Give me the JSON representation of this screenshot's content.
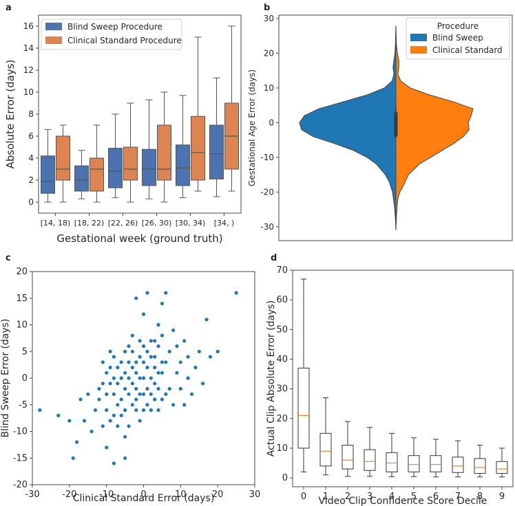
{
  "figure": {
    "panel_letters": [
      "a",
      "b",
      "c",
      "d"
    ],
    "colors": {
      "blind": "#4c72b0",
      "clinical": "#dd8452",
      "violin_blind": "#1f77b4",
      "violin_clinical": "#ff7f0e",
      "scatter": "#1f77b4",
      "median_d": "#ff7f0e",
      "axis": "#444444",
      "whisker": "#555555"
    }
  },
  "chart_data": [
    {
      "panel": "a",
      "type": "box",
      "title": "",
      "xlabel": "Gestational week (ground truth)",
      "ylabel": "Absolute Error (days)",
      "ylim": [
        -1,
        17
      ],
      "yticks": [
        0,
        2,
        4,
        6,
        8,
        10,
        12,
        14,
        16
      ],
      "categories": [
        "[14, 18)",
        "[18, 22)",
        "[22, 26)",
        "[26, 30)",
        "[30, 34)",
        "[34, )"
      ],
      "legend": {
        "position": "upper-left",
        "entries": [
          "Blind Sweep Procedure",
          "Clinical Standard Procedure"
        ]
      },
      "series": [
        {
          "name": "Blind Sweep Procedure",
          "boxes": [
            {
              "whislo": 0,
              "q1": 0.8,
              "med": 1.9,
              "q3": 4.2,
              "whishi": 6.6
            },
            {
              "whislo": 0.3,
              "q1": 1.0,
              "med": 2.0,
              "q3": 3.3,
              "whishi": 4.7
            },
            {
              "whislo": 0.4,
              "q1": 1.3,
              "med": 2.8,
              "q3": 4.9,
              "whishi": 8.0
            },
            {
              "whislo": 0.3,
              "q1": 1.5,
              "med": 3.0,
              "q3": 4.8,
              "whishi": 9.3
            },
            {
              "whislo": 0.4,
              "q1": 1.5,
              "med": 3.1,
              "q3": 5.2,
              "whishi": 9.7
            },
            {
              "whislo": 0.5,
              "q1": 2.1,
              "med": 4.4,
              "q3": 7.0,
              "whishi": 11.3
            }
          ]
        },
        {
          "name": "Clinical Standard Procedure",
          "boxes": [
            {
              "whislo": 0,
              "q1": 2.0,
              "med": 3.0,
              "q3": 6.0,
              "whishi": 7.0
            },
            {
              "whislo": 0,
              "q1": 1.0,
              "med": 3.0,
              "q3": 4.0,
              "whishi": 7.0
            },
            {
              "whislo": 0,
              "q1": 2.0,
              "med": 3.0,
              "q3": 5.0,
              "whishi": 9.0
            },
            {
              "whislo": 0,
              "q1": 2.0,
              "med": 3.0,
              "q3": 7.0,
              "whishi": 10.0
            },
            {
              "whislo": 1.0,
              "q1": 2.0,
              "med": 4.5,
              "q3": 7.8,
              "whishi": 15.0
            },
            {
              "whislo": 1.0,
              "q1": 3.0,
              "med": 6.0,
              "q3": 9.0,
              "whishi": 16.0
            }
          ]
        }
      ]
    },
    {
      "panel": "b",
      "type": "violin",
      "title": "",
      "xlabel": "",
      "ylabel": "Gestational Age Error (days)",
      "ylim": [
        -34,
        31
      ],
      "yticks": [
        -30,
        -20,
        -10,
        0,
        10,
        20,
        30
      ],
      "legend": {
        "position": "top-right",
        "title": "Procedure",
        "entries": [
          "Blind Sweep",
          "Clinical Standard"
        ]
      },
      "series": [
        {
          "name": "Blind Sweep",
          "side": "left",
          "profile": [
            [
              -31,
              0.0
            ],
            [
              -28,
              0.004
            ],
            [
              -25,
              0.012
            ],
            [
              -22,
              0.025
            ],
            [
              -20,
              0.035
            ],
            [
              -17,
              0.07
            ],
            [
              -15,
              0.11
            ],
            [
              -12,
              0.2
            ],
            [
              -10,
              0.3
            ],
            [
              -8,
              0.44
            ],
            [
              -6,
              0.64
            ],
            [
              -4,
              0.86
            ],
            [
              -2,
              0.98
            ],
            [
              0,
              1.0
            ],
            [
              2,
              0.95
            ],
            [
              4,
              0.8
            ],
            [
              6,
              0.55
            ],
            [
              8,
              0.3
            ],
            [
              10,
              0.12
            ],
            [
              12,
              0.04
            ],
            [
              14,
              0.02
            ],
            [
              16,
              0.03
            ],
            [
              18,
              0.02
            ],
            [
              20,
              0.01
            ],
            [
              23,
              0.004
            ],
            [
              26,
              0.002
            ],
            [
              28,
              0.0
            ]
          ]
        },
        {
          "name": "Clinical Standard",
          "side": "right",
          "profile": [
            [
              -31,
              0.0
            ],
            [
              -28,
              0.004
            ],
            [
              -25,
              0.01
            ],
            [
              -22,
              0.02
            ],
            [
              -20,
              0.04
            ],
            [
              -18,
              0.08
            ],
            [
              -15,
              0.13
            ],
            [
              -12,
              0.24
            ],
            [
              -10,
              0.36
            ],
            [
              -8,
              0.48
            ],
            [
              -6,
              0.6
            ],
            [
              -4,
              0.7
            ],
            [
              -2,
              0.76
            ],
            [
              0,
              0.75
            ],
            [
              2,
              0.78
            ],
            [
              4,
              0.8
            ],
            [
              6,
              0.6
            ],
            [
              8,
              0.35
            ],
            [
              10,
              0.15
            ],
            [
              12,
              0.05
            ],
            [
              14,
              0.02
            ],
            [
              16,
              0.03
            ],
            [
              18,
              0.03
            ],
            [
              20,
              0.015
            ],
            [
              23,
              0.004
            ],
            [
              26,
              0.002
            ],
            [
              28,
              0.0
            ]
          ]
        }
      ],
      "inner_box": {
        "q1": -4,
        "q3": 3,
        "whislo": -4.5,
        "whishi": 4.5
      }
    },
    {
      "panel": "c",
      "type": "scatter",
      "title": "",
      "xlabel": "Clinical Standard Error (days)",
      "ylabel": "Blind Sweep Error (days)",
      "xlim": [
        -30,
        30
      ],
      "ylim": [
        -20,
        20
      ],
      "xticks": [
        -30,
        -20,
        -10,
        0,
        10,
        20,
        30
      ],
      "yticks": [
        -20,
        -15,
        -10,
        -5,
        0,
        5,
        10,
        15,
        20
      ],
      "points": [
        [
          -28,
          -6
        ],
        [
          25,
          16
        ],
        [
          -23,
          -7
        ],
        [
          -19,
          -15
        ],
        [
          -18,
          -12
        ],
        [
          -20,
          -8
        ],
        [
          -17,
          -4
        ],
        [
          -16,
          -8
        ],
        [
          -15,
          -3
        ],
        [
          -14,
          -10
        ],
        [
          -13,
          -6
        ],
        [
          -12,
          -2
        ],
        [
          -11,
          -9
        ],
        [
          -10,
          -13
        ],
        [
          -10,
          1
        ],
        [
          -9,
          5
        ],
        [
          -8,
          -16
        ],
        [
          -8,
          -7
        ],
        [
          -7,
          -1
        ],
        [
          -6,
          3
        ],
        [
          -5,
          -15
        ],
        [
          -5,
          -11
        ],
        [
          -4,
          6
        ],
        [
          -3,
          8
        ],
        [
          -2,
          15
        ],
        [
          -2,
          -4
        ],
        [
          -1,
          -8
        ],
        [
          0,
          0
        ],
        [
          0,
          12
        ],
        [
          1,
          2
        ],
        [
          1,
          -5
        ],
        [
          1,
          16
        ],
        [
          2,
          -3
        ],
        [
          2,
          4
        ],
        [
          3,
          7
        ],
        [
          3,
          -1
        ],
        [
          4,
          10
        ],
        [
          4,
          -6
        ],
        [
          5,
          1
        ],
        [
          5,
          14
        ],
        [
          6,
          3
        ],
        [
          6,
          -3
        ],
        [
          6,
          16
        ],
        [
          7,
          5
        ],
        [
          7,
          -2
        ],
        [
          8,
          9
        ],
        [
          8,
          -5
        ],
        [
          9,
          1
        ],
        [
          9,
          6
        ],
        [
          10,
          -2
        ],
        [
          10,
          3
        ],
        [
          11,
          -5
        ],
        [
          11,
          7
        ],
        [
          12,
          0
        ],
        [
          12,
          4
        ],
        [
          13,
          -3
        ],
        [
          14,
          2
        ],
        [
          15,
          5
        ],
        [
          16,
          -1
        ],
        [
          17,
          11
        ],
        [
          18,
          4
        ],
        [
          20,
          5
        ],
        [
          -12,
          -4
        ],
        [
          -11,
          -1
        ],
        [
          -11,
          3
        ],
        [
          -10,
          -3
        ],
        [
          -10,
          -6
        ],
        [
          -9,
          -1
        ],
        [
          -9,
          2
        ],
        [
          -9,
          -8
        ],
        [
          -8,
          -3
        ],
        [
          -8,
          0
        ],
        [
          -8,
          4
        ],
        [
          -7,
          -5
        ],
        [
          -7,
          2
        ],
        [
          -7,
          -9
        ],
        [
          -6,
          -4
        ],
        [
          -6,
          0
        ],
        [
          -6,
          -7
        ],
        [
          -5,
          -2
        ],
        [
          -5,
          1
        ],
        [
          -5,
          5
        ],
        [
          -5,
          -6
        ],
        [
          -4,
          -3
        ],
        [
          -4,
          0
        ],
        [
          -4,
          3
        ],
        [
          -4,
          -9
        ],
        [
          -3,
          -5
        ],
        [
          -3,
          -1
        ],
        [
          -3,
          2
        ],
        [
          -3,
          5
        ],
        [
          -2,
          -6
        ],
        [
          -2,
          -2
        ],
        [
          -2,
          1
        ],
        [
          -2,
          3
        ],
        [
          -1,
          -3
        ],
        [
          -1,
          0
        ],
        [
          -1,
          4
        ],
        [
          -1,
          7
        ],
        [
          0,
          -6
        ],
        [
          0,
          -3
        ],
        [
          0,
          3
        ],
        [
          0,
          6
        ],
        [
          1,
          -2
        ],
        [
          1,
          5
        ],
        [
          2,
          -6
        ],
        [
          2,
          0
        ],
        [
          2,
          7
        ],
        [
          3,
          -4
        ],
        [
          3,
          2
        ],
        [
          3,
          4
        ],
        [
          4,
          -2
        ],
        [
          4,
          1
        ],
        [
          4,
          6
        ],
        [
          5,
          -4
        ],
        [
          5,
          3
        ],
        [
          5,
          8
        ]
      ]
    },
    {
      "panel": "d",
      "type": "box",
      "title": "",
      "xlabel": "Video Clip Confidence Score Decile",
      "ylabel": "Actual Clip Absolute Error (days)",
      "ylim": [
        -3,
        70
      ],
      "yticks": [
        0,
        10,
        20,
        30,
        40,
        50,
        60,
        70
      ],
      "categories": [
        "0",
        "1",
        "2",
        "3",
        "4",
        "5",
        "6",
        "7",
        "8",
        "9"
      ],
      "boxes": [
        {
          "whislo": 2,
          "q1": 10,
          "med": 21,
          "q3": 37,
          "whishi": 67
        },
        {
          "whislo": 1,
          "q1": 4,
          "med": 9,
          "q3": 15,
          "whishi": 27
        },
        {
          "whislo": 0.5,
          "q1": 3,
          "med": 6,
          "q3": 11,
          "whishi": 19
        },
        {
          "whislo": 0.5,
          "q1": 2.5,
          "med": 5.5,
          "q3": 9.5,
          "whishi": 17
        },
        {
          "whislo": 0.4,
          "q1": 2,
          "med": 5,
          "q3": 8.5,
          "whishi": 15
        },
        {
          "whislo": 0.4,
          "q1": 2,
          "med": 4.5,
          "q3": 7.5,
          "whishi": 13.5
        },
        {
          "whislo": 0.3,
          "q1": 2,
          "med": 4.5,
          "q3": 7.5,
          "whishi": 13
        },
        {
          "whislo": 0.3,
          "q1": 1.8,
          "med": 4,
          "q3": 7,
          "whishi": 12.5
        },
        {
          "whislo": 0.3,
          "q1": 1.5,
          "med": 3.5,
          "q3": 6.5,
          "whishi": 11
        },
        {
          "whislo": 0.3,
          "q1": 1.5,
          "med": 3,
          "q3": 5.5,
          "whishi": 10
        }
      ]
    }
  ]
}
